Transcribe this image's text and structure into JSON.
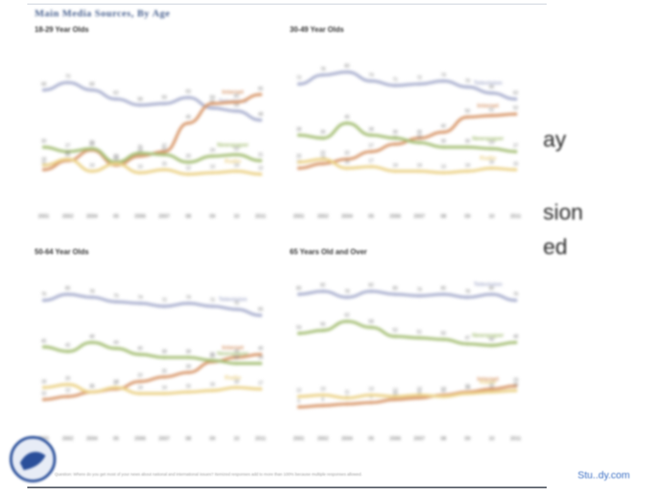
{
  "slide": {
    "header": "Main Media Sources, By Age",
    "side_text": [
      "ay",
      "sion",
      "ed"
    ],
    "footer_note": "Question: Where do you get most of your news about national and international issues? Itemized responses add to more than 100% because multiple responses allowed.",
    "watermark": "Stu..dy.com"
  },
  "colors": {
    "tv": "#aab0cf",
    "internet": "#d99a6e",
    "newspaper": "#a7c078",
    "radio": "#ecd38a"
  },
  "chart_data": [
    {
      "type": "line",
      "title": "18-29 Year Olds",
      "x": [
        "2001",
        "2002",
        "2004",
        "05",
        "2006",
        "2007",
        "08",
        "09",
        "10",
        "2011"
      ],
      "ylim": [
        0,
        100
      ],
      "series": [
        {
          "name": "Television",
          "key": "tv",
          "values": [
            68,
            73,
            68,
            62,
            58,
            59,
            63,
            56,
            54,
            48
          ]
        },
        {
          "name": "Internet",
          "key": "internet",
          "values": [
            15,
            21,
            28,
            18,
            24,
            27,
            46,
            59,
            60,
            65
          ]
        },
        {
          "name": "Newspaper",
          "key": "newspaper",
          "values": [
            30,
            27,
            29,
            20,
            26,
            25,
            20,
            24,
            25,
            21
          ]
        },
        {
          "name": "Radio",
          "key": "radio",
          "values": [
            18,
            22,
            14,
            19,
            13,
            15,
            12,
            13,
            14,
            12
          ]
        }
      ]
    },
    {
      "type": "line",
      "title": "30-49 Year Olds",
      "x": [
        "2001",
        "2002",
        "2004",
        "05",
        "2006",
        "2007",
        "08",
        "09",
        "10",
        "2011"
      ],
      "ylim": [
        0,
        100
      ],
      "series": [
        {
          "name": "Television",
          "key": "tv",
          "values": [
            72,
            78,
            80,
            74,
            71,
            72,
            74,
            70,
            66,
            62
          ]
        },
        {
          "name": "Internet",
          "key": "internet",
          "values": [
            16,
            19,
            22,
            27,
            32,
            36,
            40,
            50,
            51,
            52
          ]
        },
        {
          "name": "Newspaper",
          "key": "newspaper",
          "values": [
            38,
            36,
            46,
            38,
            36,
            33,
            30,
            30,
            29,
            27
          ]
        },
        {
          "name": "Radio",
          "key": "radio",
          "values": [
            20,
            22,
            16,
            17,
            14,
            14,
            13,
            14,
            16,
            15
          ]
        }
      ]
    },
    {
      "type": "line",
      "title": "50-64 Year Olds",
      "x": [
        "2001",
        "2002",
        "2004",
        "05",
        "2006",
        "2007",
        "08",
        "09",
        "10",
        "2011"
      ],
      "ylim": [
        0,
        100
      ],
      "series": [
        {
          "name": "Television",
          "key": "tv",
          "values": [
            76,
            80,
            78,
            75,
            74,
            72,
            74,
            72,
            70,
            66
          ]
        },
        {
          "name": "Internet",
          "key": "internet",
          "values": [
            10,
            12,
            15,
            17,
            22,
            25,
            28,
            35,
            38,
            40
          ]
        },
        {
          "name": "Newspaper",
          "key": "newspaper",
          "values": [
            45,
            42,
            48,
            44,
            40,
            38,
            38,
            36,
            34,
            34
          ]
        },
        {
          "name": "Radio",
          "key": "radio",
          "values": [
            18,
            20,
            15,
            18,
            14,
            14,
            15,
            16,
            18,
            17
          ]
        }
      ]
    },
    {
      "type": "line",
      "title": "65 Years Old and Over",
      "x": [
        "2001",
        "2002",
        "2004",
        "05",
        "2006",
        "2007",
        "08",
        "09",
        "10",
        "2011"
      ],
      "ylim": [
        0,
        100
      ],
      "series": [
        {
          "name": "Television",
          "key": "tv",
          "values": [
            80,
            82,
            78,
            82,
            80,
            79,
            80,
            78,
            80,
            76
          ]
        },
        {
          "name": "Internet",
          "key": "internet",
          "values": [
            5,
            6,
            7,
            8,
            10,
            11,
            13,
            15,
            17,
            19
          ]
        },
        {
          "name": "Newspaper",
          "key": "newspaper",
          "values": [
            54,
            56,
            62,
            58,
            52,
            51,
            50,
            47,
            46,
            48
          ]
        },
        {
          "name": "Radio",
          "key": "radio",
          "values": [
            12,
            13,
            11,
            13,
            12,
            13,
            12,
            14,
            15,
            16
          ]
        }
      ]
    }
  ]
}
